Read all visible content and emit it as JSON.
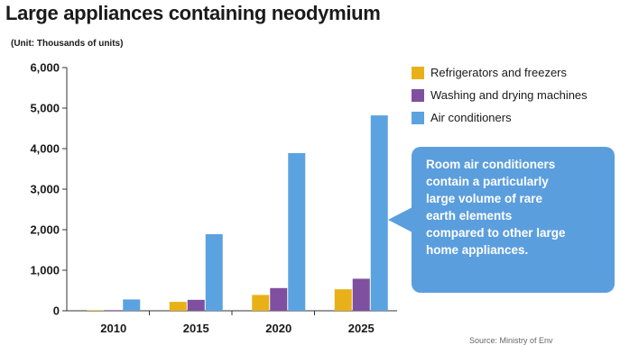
{
  "chart_data": {
    "type": "bar",
    "title": "Large appliances containing neodymium",
    "unit_label": "(Unit: Thousands of units)",
    "categories": [
      "2010",
      "2015",
      "2020",
      "2025"
    ],
    "series": [
      {
        "name": "Refrigerators and freezers",
        "color": "#e8b118",
        "values": [
          15,
          220,
          390,
          530
        ]
      },
      {
        "name": "Washing and drying machines",
        "color": "#7f4fa0",
        "values": [
          15,
          270,
          560,
          790
        ]
      },
      {
        "name": "Air conditioners",
        "color": "#5ba3e0",
        "values": [
          280,
          1890,
          3890,
          4820
        ]
      }
    ],
    "ylim": [
      0,
      6000
    ],
    "yticks": [
      "0",
      "1,000",
      "2,000",
      "3,000",
      "4,000",
      "5,000",
      "6,000"
    ],
    "grid": false,
    "legend_position": "right",
    "annotation": {
      "lines": [
        "Room air conditioners",
        "contain a particularly",
        "large volume of rare",
        "earth elements",
        "compared to other large",
        "home appliances."
      ],
      "color": "#5b9ede"
    },
    "footer_text": "Source: Ministry of Env"
  }
}
